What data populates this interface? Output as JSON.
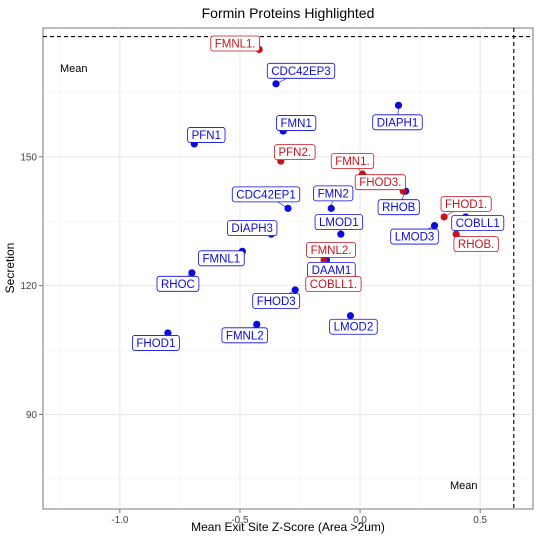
{
  "chart_data": {
    "type": "scatter",
    "title": "Formin Proteins Highlighted",
    "xlabel": "Mean Exit Site Z-Score (Area >2um)",
    "ylabel": "Secretion",
    "xlim": [
      -1.32,
      0.72
    ],
    "ylim": [
      68,
      180
    ],
    "x_ticks": [
      -1.0,
      -0.5,
      0.0,
      0.5
    ],
    "x_tick_labels": [
      "-1.0",
      "-0.5",
      "0.0",
      "0.5"
    ],
    "y_ticks": [
      90,
      120,
      150
    ],
    "y_tick_labels": [
      "90",
      "120",
      "150"
    ],
    "grid": true,
    "mean_x": 0.64,
    "mean_y": 178,
    "mean_label_top": "Mean",
    "mean_label_bottom": "Mean",
    "colors": {
      "blue": "#0a0adf",
      "red": "#c8141e"
    },
    "series": [
      {
        "color": "blue",
        "points": [
          {
            "label": "CDC42EP3",
            "x": -0.35,
            "y": 167
          },
          {
            "label": "DIAPH1",
            "x": 0.16,
            "y": 162
          },
          {
            "label": "FMN1",
            "x": -0.32,
            "y": 156
          },
          {
            "label": "PFN1",
            "x": -0.69,
            "y": 153
          },
          {
            "label": "RHOB",
            "x": 0.19,
            "y": 142
          },
          {
            "label": "CDC42EP1",
            "x": -0.3,
            "y": 138
          },
          {
            "label": "FMN2",
            "x": -0.12,
            "y": 138
          },
          {
            "label": "COBLL1",
            "x": 0.44,
            "y": 136
          },
          {
            "label": "LMOD3",
            "x": 0.31,
            "y": 134
          },
          {
            "label": "DIAPH3",
            "x": -0.37,
            "y": 132
          },
          {
            "label": "LMOD1",
            "x": -0.08,
            "y": 132
          },
          {
            "label": "FMNL1",
            "x": -0.49,
            "y": 128
          },
          {
            "label": "DAAM1",
            "x": -0.14,
            "y": 126
          },
          {
            "label": "RHOC",
            "x": -0.7,
            "y": 123
          },
          {
            "label": "FHOD3",
            "x": -0.27,
            "y": 119
          },
          {
            "label": "LMOD2",
            "x": -0.04,
            "y": 113
          },
          {
            "label": "FMNL2",
            "x": -0.43,
            "y": 111
          },
          {
            "label": "FHOD1",
            "x": -0.8,
            "y": 109
          }
        ]
      },
      {
        "color": "red",
        "points": [
          {
            "label": "FMNL1.",
            "x": -0.42,
            "y": 175
          },
          {
            "label": "PFN2.",
            "x": -0.33,
            "y": 149
          },
          {
            "label": "FMN1.",
            "x": 0.01,
            "y": 146
          },
          {
            "label": "FHOD3.",
            "x": 0.18,
            "y": 142
          },
          {
            "label": "FHOD1.",
            "x": 0.35,
            "y": 136
          },
          {
            "label": "RHOB.",
            "x": 0.4,
            "y": 132
          },
          {
            "label": "FMNL2.",
            "x": -0.15,
            "y": 126
          },
          {
            "label": "COBLL1.",
            "x": -0.19,
            "y": 122
          }
        ]
      }
    ]
  }
}
